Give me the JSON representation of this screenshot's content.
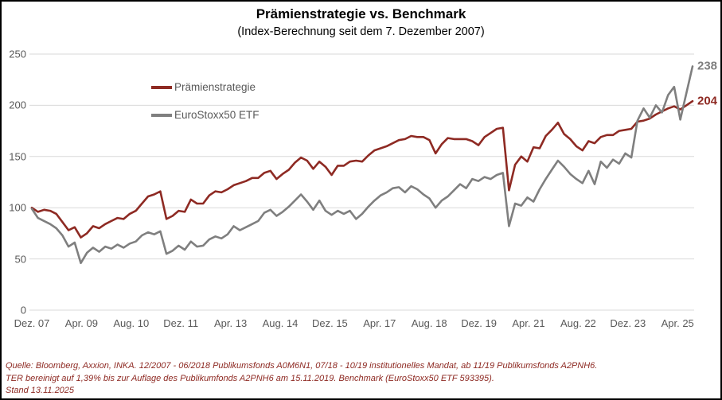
{
  "chart_data": {
    "type": "line",
    "title": "Prämienstrategie vs. Benchmark",
    "subtitle": "(Index-Berechnung seit dem 7. Dezember 2007)",
    "grid": true,
    "legend_position": "inside-top-left",
    "ylim": [
      0,
      250
    ],
    "y_ticks": [
      0,
      50,
      100,
      150,
      200,
      250
    ],
    "x_ticks": [
      "Dez. 07",
      "Apr. 09",
      "Aug. 10",
      "Dez. 11",
      "Apr. 13",
      "Aug. 14",
      "Dez. 15",
      "Apr. 17",
      "Aug. 18",
      "Dez. 19",
      "Apr. 21",
      "Aug. 22",
      "Dez. 23",
      "Apr. 25"
    ],
    "index_base": 100,
    "series": [
      {
        "name": "Prämienstrategie",
        "color": "#8e2a23",
        "end_label": "204",
        "final_value": 204,
        "values": [
          100,
          96,
          98,
          97,
          94,
          86,
          78,
          81,
          71,
          75,
          82,
          80,
          84,
          87,
          90,
          89,
          94,
          97,
          104,
          111,
          113,
          116,
          89,
          92,
          97,
          96,
          108,
          104,
          104,
          112,
          116,
          115,
          118,
          122,
          124,
          126,
          129,
          129,
          134,
          136,
          128,
          133,
          137,
          144,
          149,
          146,
          138,
          145,
          140,
          132,
          141,
          141,
          145,
          146,
          145,
          151,
          156,
          158,
          160,
          163,
          166,
          167,
          170,
          169,
          169,
          166,
          153,
          162,
          168,
          167,
          167,
          167,
          165,
          161,
          169,
          173,
          177,
          178,
          117,
          142,
          150,
          145,
          159,
          158,
          170,
          176,
          183,
          172,
          167,
          160,
          156,
          165,
          163,
          169,
          171,
          171,
          175,
          176,
          177,
          184,
          185,
          187,
          191,
          194,
          197,
          199,
          196,
          200,
          204
        ]
      },
      {
        "name": "EuroStoxx50 ETF",
        "color": "#7f7f7f",
        "end_label": "238",
        "final_value": 238,
        "values": [
          99,
          90,
          87,
          84,
          80,
          73,
          62,
          66,
          46,
          56,
          61,
          57,
          62,
          60,
          64,
          61,
          65,
          67,
          73,
          76,
          74,
          77,
          55,
          58,
          63,
          59,
          67,
          62,
          63,
          69,
          72,
          70,
          74,
          82,
          78,
          81,
          84,
          87,
          95,
          98,
          92,
          96,
          101,
          107,
          113,
          106,
          98,
          107,
          97,
          93,
          97,
          94,
          97,
          89,
          94,
          101,
          107,
          112,
          115,
          119,
          120,
          115,
          121,
          118,
          113,
          109,
          100,
          107,
          111,
          117,
          123,
          119,
          128,
          126,
          130,
          128,
          132,
          134,
          82,
          104,
          102,
          110,
          106,
          118,
          128,
          137,
          146,
          140,
          133,
          128,
          124,
          136,
          123,
          145,
          139,
          147,
          143,
          153,
          149,
          185,
          197,
          188,
          200,
          193,
          210,
          218,
          186,
          212,
          238
        ]
      }
    ]
  },
  "footnotes": [
    "Quelle: Bloomberg, Axxion, INKA. 12/2007 - 06/2018 Publikumsfonds A0M6N1, 07/18 - 10/19 institutionelles Mandat, ab 11/19 Publikumsfonds A2PNH6.",
    "TER bereinigt auf 1,39% bis zur Auflage des Publikumfonds A2PNH6 am 15.11.2019. Benchmark (EuroStoxx50 ETF 593395).",
    "Stand 13.11.2025"
  ],
  "colors": {
    "gridline": "#d9d9d9",
    "axis_text": "#595959",
    "footnote_text": "#8e2a23"
  }
}
